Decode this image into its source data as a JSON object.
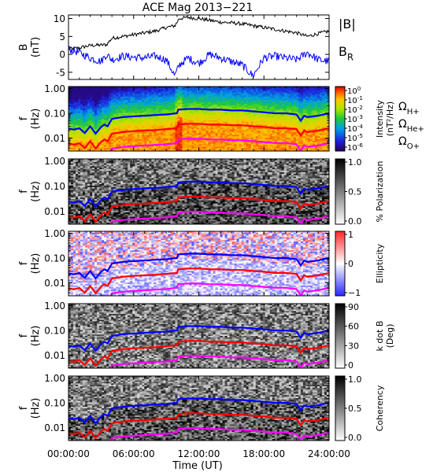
{
  "figure": {
    "title": "ACE Mag 2013−221",
    "time_axis": {
      "label": "Time (UT)",
      "ticks": [
        "00:00:00",
        "06:00:00",
        "12:00:00",
        "18:00:00",
        "24:00:00"
      ],
      "range_hours": [
        0,
        24
      ]
    }
  },
  "colors": {
    "total_field": "#000000",
    "radial_field": "#0000ff",
    "h_plus": "#0000ff",
    "he_plus": "#ff0000",
    "o_plus": "#ff00ff"
  },
  "chart_data": [
    {
      "type": "line",
      "panel": "field",
      "ylabel_line1": "B",
      "ylabel_line2": "(nT)",
      "ylim": [
        -7,
        11
      ],
      "yticks": [
        "10",
        "5",
        "0",
        "-5"
      ],
      "ytick_values": [
        10,
        5,
        0,
        -5
      ],
      "legend_placement": "right",
      "x_hours": [
        0,
        1,
        2,
        3,
        3.5,
        4,
        5,
        6,
        7,
        8,
        9,
        9.8,
        10.2,
        11,
        12,
        13,
        14,
        15,
        16,
        17,
        18,
        19,
        20,
        21,
        22,
        23,
        24
      ],
      "series": [
        {
          "name": "|B|",
          "color": "#000000",
          "values": [
            1.5,
            1.8,
            2.5,
            2.6,
            2.7,
            4.5,
            5.0,
            5.5,
            6.0,
            6.5,
            7.5,
            8.0,
            10.0,
            10.3,
            10.0,
            9.5,
            9.0,
            8.8,
            8.5,
            8.0,
            7.5,
            7.0,
            6.5,
            6.0,
            5.0,
            5.8,
            6.5
          ]
        },
        {
          "name": "B",
          "subscript": "R",
          "color": "#0000ff",
          "values": [
            1.5,
            0.5,
            -1.0,
            -2.0,
            0.0,
            -1.5,
            -0.5,
            -0.8,
            -1.0,
            -0.5,
            -1.5,
            -6.0,
            -3.0,
            -1.0,
            -2.5,
            0.0,
            -1.0,
            -2.0,
            -3.0,
            -6.0,
            -1.0,
            -0.5,
            -1.0,
            -1.5,
            0.5,
            -1.5,
            -2.0
          ]
        }
      ]
    },
    {
      "type": "heatmap",
      "panel": "intensity",
      "ylabel_line1": "f",
      "ylabel_line2": "(Hz)",
      "yscale": "log",
      "ylim": [
        0.003,
        1.2
      ],
      "yticks": [
        "1.00",
        "0.10",
        "0.01"
      ],
      "ytick_values": [
        1.0,
        0.1,
        0.01
      ],
      "colorbar": {
        "label_line1": "Intensity",
        "label_line2": "(nT²/Hz)",
        "scale": "log",
        "range": [
          1e-06,
          1.0
        ],
        "ticks": [
          {
            "base": "10",
            "exp": "0"
          },
          {
            "base": "10",
            "exp": "-1"
          },
          {
            "base": "10",
            "exp": "-2"
          },
          {
            "base": "10",
            "exp": "-3"
          },
          {
            "base": "10",
            "exp": "-4"
          },
          {
            "base": "10",
            "exp": "-5"
          },
          {
            "base": "10",
            "exp": "-6"
          }
        ],
        "colormap": "rainbow"
      },
      "legend": [
        {
          "name": "Ω",
          "subscript": "H+",
          "color": "#0000ff"
        },
        {
          "name": "Ω",
          "subscript": "He+",
          "color": "#ff0000"
        },
        {
          "name": "Ω",
          "subscript": "O+",
          "color": "#ff00ff"
        }
      ]
    },
    {
      "type": "heatmap",
      "panel": "polarization",
      "ylabel_line1": "f",
      "ylabel_line2": "(Hz)",
      "yscale": "log",
      "ylim": [
        0.003,
        1.2
      ],
      "yticks": [
        "1.00",
        "0.10",
        "0.01"
      ],
      "ytick_values": [
        1.0,
        0.1,
        0.01
      ],
      "colorbar": {
        "label": "% Polarization",
        "range": [
          0.0,
          1.0
        ],
        "ticks": [
          "1.0",
          "0.5",
          "0.0"
        ],
        "colormap": "gray"
      }
    },
    {
      "type": "heatmap",
      "panel": "ellipticity",
      "ylabel_line1": "f",
      "ylabel_line2": "(Hz)",
      "yscale": "log",
      "ylim": [
        0.003,
        1.2
      ],
      "yticks": [
        "1.00",
        "0.10",
        "0.01"
      ],
      "ytick_values": [
        1.0,
        0.1,
        0.01
      ],
      "colorbar": {
        "label": "Ellipticity",
        "range": [
          -1,
          1
        ],
        "ticks": [
          "1",
          "0",
          "−1"
        ],
        "colormap": "blue-white-red"
      }
    },
    {
      "type": "heatmap",
      "panel": "kdotb",
      "ylabel_line1": "f",
      "ylabel_line2": "(Hz)",
      "yscale": "log",
      "ylim": [
        0.003,
        1.2
      ],
      "yticks": [
        "1.00",
        "0.10",
        "0.01"
      ],
      "ytick_values": [
        1.0,
        0.1,
        0.01
      ],
      "colorbar": {
        "label_line1": "k dot B",
        "label_line2": "(Deg)",
        "range": [
          0,
          90
        ],
        "ticks": [
          "90",
          "60",
          "30",
          "0"
        ],
        "colormap": "gray"
      }
    },
    {
      "type": "heatmap",
      "panel": "coherency",
      "ylabel_line1": "f",
      "ylabel_line2": "(Hz)",
      "yscale": "log",
      "ylim": [
        0.003,
        1.2
      ],
      "yticks": [
        "1.00",
        "0.10",
        "0.01"
      ],
      "ytick_values": [
        1.0,
        0.1,
        0.01
      ],
      "colorbar": {
        "label": "Coherency",
        "range": [
          0.0,
          1.0
        ],
        "ticks": [
          "1.0",
          "0.5",
          "0.0"
        ],
        "colormap": "gray"
      }
    }
  ],
  "gyrofrequency_curves": {
    "x_hours": [
      0,
      0.5,
      1,
      1.5,
      2,
      2.5,
      3,
      3.3,
      3.6,
      4,
      5,
      6,
      7,
      8,
      9,
      10,
      10.1,
      11,
      12,
      13,
      14,
      15,
      16,
      17,
      18,
      19,
      20,
      21,
      21.4,
      21.7,
      22,
      23,
      24
    ],
    "h_plus_hz": [
      0.024,
      0.022,
      0.025,
      0.016,
      0.03,
      0.015,
      0.028,
      0.035,
      0.03,
      0.06,
      0.07,
      0.075,
      0.08,
      0.085,
      0.09,
      0.1,
      0.14,
      0.15,
      0.15,
      0.14,
      0.14,
      0.13,
      0.13,
      0.12,
      0.11,
      0.1,
      0.1,
      0.09,
      0.05,
      0.08,
      0.07,
      0.08,
      0.1
    ],
    "he_plus_hz": [
      0.006,
      0.0055,
      0.0062,
      0.004,
      0.0075,
      0.0038,
      0.007,
      0.0088,
      0.0075,
      0.015,
      0.0175,
      0.019,
      0.02,
      0.021,
      0.023,
      0.025,
      0.035,
      0.038,
      0.038,
      0.035,
      0.035,
      0.033,
      0.033,
      0.03,
      0.028,
      0.025,
      0.025,
      0.023,
      0.0125,
      0.02,
      0.0175,
      0.02,
      0.025
    ],
    "o_plus_hz": [
      0.0015,
      0.0014,
      0.0016,
      0.001,
      0.0019,
      0.001,
      0.0018,
      0.0022,
      0.0019,
      0.0038,
      0.0044,
      0.0047,
      0.005,
      0.0053,
      0.0056,
      0.0063,
      0.0088,
      0.0094,
      0.0094,
      0.0088,
      0.0088,
      0.0081,
      0.0081,
      0.0075,
      0.0069,
      0.0063,
      0.0063,
      0.0056,
      0.0031,
      0.005,
      0.0044,
      0.005,
      0.0063
    ]
  }
}
